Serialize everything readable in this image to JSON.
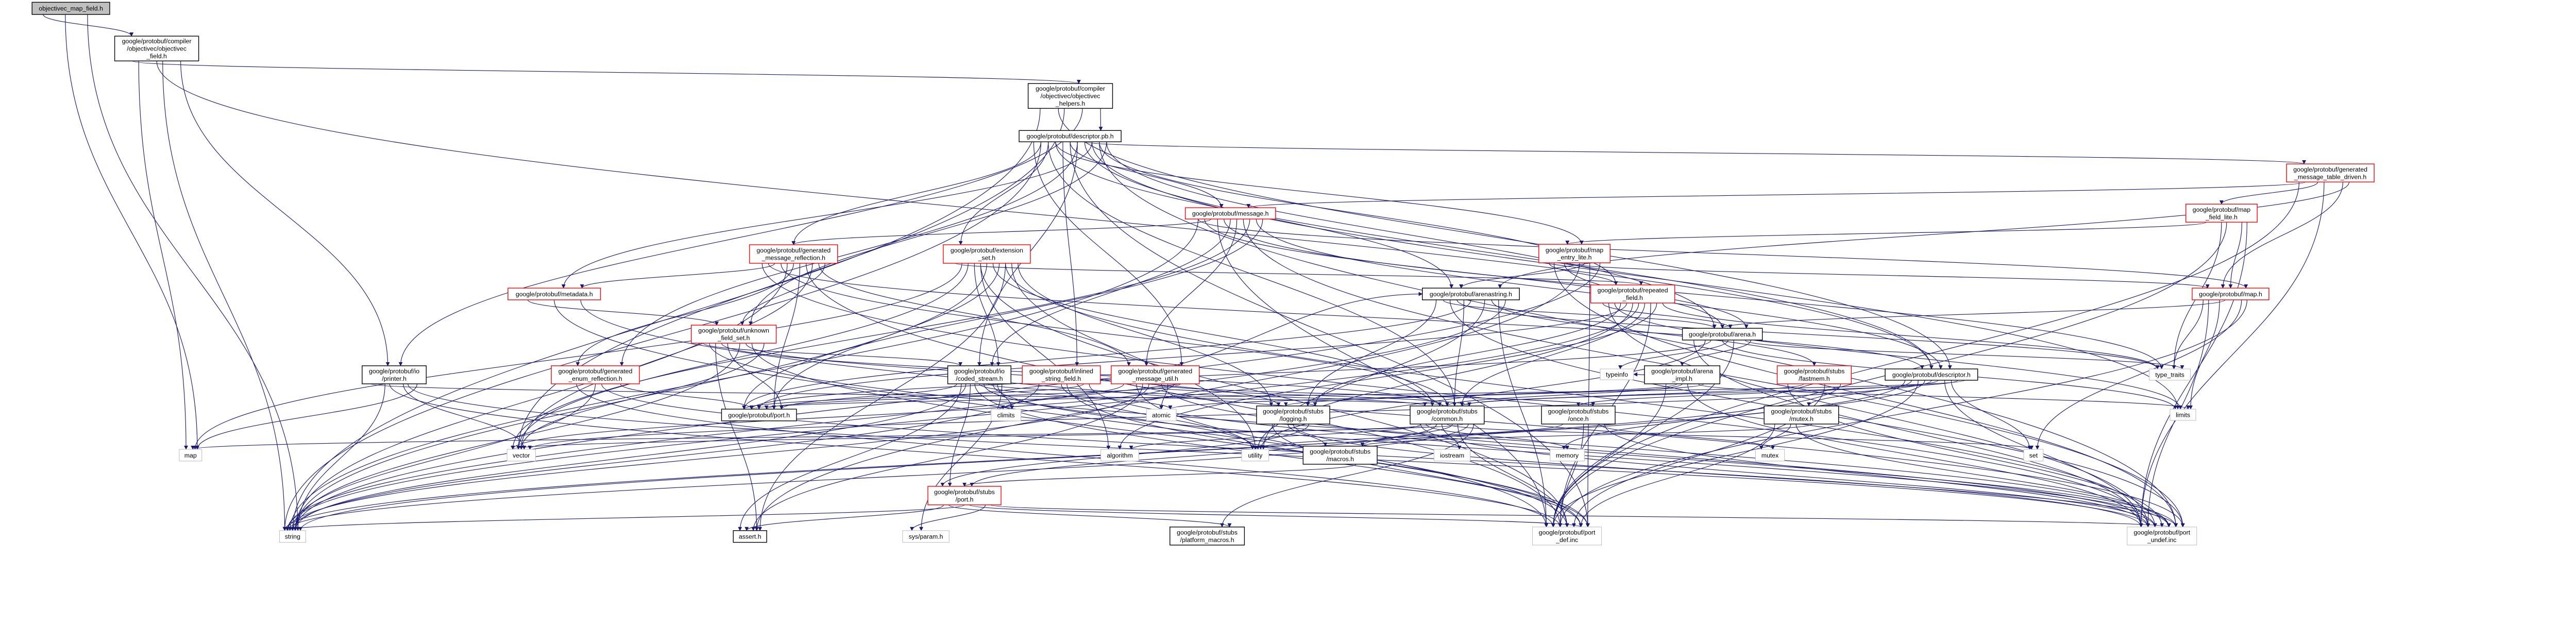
{
  "colors": {
    "edge": "#191970",
    "root_fill": "#bfbfbf",
    "root_border": "#000000",
    "truncated_border": "#ff0000",
    "file_border": "#000000",
    "system_border": "#bfbfbf",
    "node_fill": "#ffffff"
  },
  "nodes": [
    {
      "id": "root",
      "label": [
        "objectivec_map_field.h"
      ],
      "kind": "root"
    },
    {
      "id": "field",
      "label": [
        "google/protobuf/compiler",
        "/objectivec/objectivec",
        "_field.h"
      ],
      "kind": "file"
    },
    {
      "id": "helpers",
      "label": [
        "google/protobuf/compiler",
        "/objectivec/objectivec",
        "_helpers.h"
      ],
      "kind": "file"
    },
    {
      "id": "descriptor_pb",
      "label": [
        "google/protobuf/descriptor.pb.h"
      ],
      "kind": "file"
    },
    {
      "id": "message",
      "label": [
        "google/protobuf/message.h"
      ],
      "kind": "truncated"
    },
    {
      "id": "gmr",
      "label": [
        "google/protobuf/generated",
        "_message_reflection.h"
      ],
      "kind": "truncated"
    },
    {
      "id": "extension_set",
      "label": [
        "google/protobuf/extension",
        "_set.h"
      ],
      "kind": "truncated"
    },
    {
      "id": "metadata",
      "label": [
        "google/protobuf/metadata.h"
      ],
      "kind": "truncated"
    },
    {
      "id": "unknown",
      "label": [
        "google/protobuf/unknown",
        "_field_set.h"
      ],
      "kind": "truncated"
    },
    {
      "id": "printer",
      "label": [
        "google/protobuf/io",
        "/printer.h"
      ],
      "kind": "file"
    },
    {
      "id": "ger",
      "label": [
        "google/protobuf/generated",
        "_enum_reflection.h"
      ],
      "kind": "truncated"
    },
    {
      "id": "coded_stream",
      "label": [
        "google/protobuf/io",
        "/coded_stream.h"
      ],
      "kind": "file"
    },
    {
      "id": "inlined",
      "label": [
        "google/protobuf/inlined",
        "_string_field.h"
      ],
      "kind": "truncated"
    },
    {
      "id": "gmu",
      "label": [
        "google/protobuf/generated",
        "_message_util.h"
      ],
      "kind": "truncated"
    },
    {
      "id": "port",
      "label": [
        "google/protobuf/port.h"
      ],
      "kind": "file"
    },
    {
      "id": "climits",
      "label": [
        "climits"
      ],
      "kind": "system"
    },
    {
      "id": "atomic",
      "label": [
        "atomic"
      ],
      "kind": "system"
    },
    {
      "id": "logging",
      "label": [
        "google/protobuf/stubs",
        "/logging.h"
      ],
      "kind": "file"
    },
    {
      "id": "common",
      "label": [
        "google/protobuf/stubs",
        "/common.h"
      ],
      "kind": "file"
    },
    {
      "id": "once",
      "label": [
        "google/protobuf/stubs",
        "/once.h"
      ],
      "kind": "file"
    },
    {
      "id": "mutex_h",
      "label": [
        "google/protobuf/stubs",
        "/mutex.h"
      ],
      "kind": "file"
    },
    {
      "id": "map_std",
      "label": [
        "map"
      ],
      "kind": "system"
    },
    {
      "id": "vector",
      "label": [
        "vector"
      ],
      "kind": "system"
    },
    {
      "id": "algorithm",
      "label": [
        "algorithm"
      ],
      "kind": "system"
    },
    {
      "id": "utility",
      "label": [
        "utility"
      ],
      "kind": "system"
    },
    {
      "id": "macros",
      "label": [
        "google/protobuf/stubs",
        "/macros.h"
      ],
      "kind": "file"
    },
    {
      "id": "iostream",
      "label": [
        "iostream"
      ],
      "kind": "system"
    },
    {
      "id": "memory",
      "label": [
        "memory"
      ],
      "kind": "system"
    },
    {
      "id": "mutex",
      "label": [
        "mutex"
      ],
      "kind": "system"
    },
    {
      "id": "set",
      "label": [
        "set"
      ],
      "kind": "system"
    },
    {
      "id": "stubs_port",
      "label": [
        "google/protobuf/stubs",
        "/port.h"
      ],
      "kind": "truncated"
    },
    {
      "id": "string",
      "label": [
        "string"
      ],
      "kind": "system"
    },
    {
      "id": "assert",
      "label": [
        "assert.h"
      ],
      "kind": "file"
    },
    {
      "id": "sysparam",
      "label": [
        "sys/param.h"
      ],
      "kind": "system"
    },
    {
      "id": "platform_macros",
      "label": [
        "google/protobuf/stubs",
        "/platform_macros.h"
      ],
      "kind": "file"
    },
    {
      "id": "port_def",
      "label": [
        "google/protobuf/port",
        "_def.inc"
      ],
      "kind": "system"
    },
    {
      "id": "port_undef",
      "label": [
        "google/protobuf/port",
        "_undef.inc"
      ],
      "kind": "system"
    },
    {
      "id": "map_entry_lite",
      "label": [
        "google/protobuf/map",
        "_entry_lite.h"
      ],
      "kind": "truncated"
    },
    {
      "id": "arenastring",
      "label": [
        "google/protobuf/arenastring.h"
      ],
      "kind": "file"
    },
    {
      "id": "repeated",
      "label": [
        "google/protobuf/repeated",
        "_field.h"
      ],
      "kind": "truncated"
    },
    {
      "id": "arena",
      "label": [
        "google/protobuf/arena.h"
      ],
      "kind": "file"
    },
    {
      "id": "typeinfo",
      "label": [
        "typeinfo"
      ],
      "kind": "system"
    },
    {
      "id": "arena_impl",
      "label": [
        "google/protobuf/arena",
        "_impl.h"
      ],
      "kind": "file"
    },
    {
      "id": "fastmem",
      "label": [
        "google/protobuf/stubs",
        "/fastmem.h"
      ],
      "kind": "truncated"
    },
    {
      "id": "descriptor_h",
      "label": [
        "google/protobuf/descriptor.h"
      ],
      "kind": "file"
    },
    {
      "id": "type_traits",
      "label": [
        "type_traits"
      ],
      "kind": "system"
    },
    {
      "id": "limits",
      "label": [
        "limits"
      ],
      "kind": "system"
    },
    {
      "id": "gmtd",
      "label": [
        "google/protobuf/generated",
        "_message_table_driven.h"
      ],
      "kind": "truncated"
    },
    {
      "id": "map_field_lite",
      "label": [
        "google/protobuf/map",
        "_field_lite.h"
      ],
      "kind": "truncated"
    },
    {
      "id": "map_h",
      "label": [
        "google/protobuf/map.h"
      ],
      "kind": "truncated"
    }
  ],
  "edges": [
    [
      "root",
      "field"
    ],
    [
      "root",
      "map_std"
    ],
    [
      "root",
      "string"
    ],
    [
      "field",
      "helpers"
    ],
    [
      "field",
      "descriptor_h"
    ],
    [
      "field",
      "printer"
    ],
    [
      "field",
      "map_std"
    ],
    [
      "field",
      "string"
    ],
    [
      "helpers",
      "descriptor_pb"
    ],
    [
      "helpers",
      "descriptor_h"
    ],
    [
      "helpers",
      "printer"
    ],
    [
      "helpers",
      "string"
    ],
    [
      "helpers",
      "vector"
    ],
    [
      "descriptor_pb",
      "limits"
    ],
    [
      "descriptor_pb",
      "string"
    ],
    [
      "descriptor_pb",
      "port_def"
    ],
    [
      "descriptor_pb",
      "port_undef"
    ],
    [
      "descriptor_pb",
      "common"
    ],
    [
      "descriptor_pb",
      "coded_stream"
    ],
    [
      "descriptor_pb",
      "arena"
    ],
    [
      "descriptor_pb",
      "arenastring"
    ],
    [
      "descriptor_pb",
      "gmtd"
    ],
    [
      "descriptor_pb",
      "gmu"
    ],
    [
      "descriptor_pb",
      "inlined"
    ],
    [
      "descriptor_pb",
      "metadata"
    ],
    [
      "descriptor_pb",
      "gmr"
    ],
    [
      "descriptor_pb",
      "message"
    ],
    [
      "descriptor_pb",
      "repeated"
    ],
    [
      "descriptor_pb",
      "extension_set"
    ],
    [
      "descriptor_pb",
      "ger"
    ],
    [
      "descriptor_pb",
      "unknown"
    ],
    [
      "descriptor_pb",
      "map_entry_lite"
    ],
    [
      "descriptor_pb",
      "descriptor_h"
    ],
    [
      "message",
      "string"
    ],
    [
      "message",
      "type_traits"
    ],
    [
      "message",
      "vector"
    ],
    [
      "message",
      "arena"
    ],
    [
      "message",
      "coded_stream"
    ],
    [
      "message",
      "descriptor_h"
    ],
    [
      "message",
      "gmr"
    ],
    [
      "message",
      "gmu"
    ],
    [
      "message",
      "port"
    ],
    [
      "message",
      "port_def"
    ],
    [
      "message",
      "port_undef"
    ],
    [
      "message",
      "map_h"
    ],
    [
      "gmr",
      "string"
    ],
    [
      "gmr",
      "vector"
    ],
    [
      "gmr",
      "descriptor_h"
    ],
    [
      "gmr",
      "ger"
    ],
    [
      "gmr",
      "gmu"
    ],
    [
      "gmr",
      "metadata"
    ],
    [
      "gmr",
      "port"
    ],
    [
      "gmr",
      "unknown"
    ],
    [
      "gmr",
      "common"
    ],
    [
      "gmr",
      "port_def"
    ],
    [
      "gmr",
      "port_undef"
    ],
    [
      "extension_set",
      "algorithm"
    ],
    [
      "extension_set",
      "assert"
    ],
    [
      "extension_set",
      "map_std"
    ],
    [
      "extension_set",
      "string"
    ],
    [
      "extension_set",
      "utility"
    ],
    [
      "extension_set",
      "vector"
    ],
    [
      "extension_set",
      "common"
    ],
    [
      "extension_set",
      "logging"
    ],
    [
      "extension_set",
      "coded_stream"
    ],
    [
      "extension_set",
      "port"
    ],
    [
      "extension_set",
      "repeated"
    ],
    [
      "extension_set",
      "port_def"
    ],
    [
      "extension_set",
      "port_undef"
    ],
    [
      "metadata",
      "unknown"
    ],
    [
      "metadata",
      "port_def"
    ],
    [
      "metadata",
      "port_undef"
    ],
    [
      "unknown",
      "assert"
    ],
    [
      "unknown",
      "string"
    ],
    [
      "unknown",
      "vector"
    ],
    [
      "unknown",
      "common"
    ],
    [
      "unknown",
      "logging"
    ],
    [
      "unknown",
      "coded_stream"
    ],
    [
      "unknown",
      "port"
    ],
    [
      "unknown",
      "port_def"
    ],
    [
      "unknown",
      "port_undef"
    ],
    [
      "ger",
      "string"
    ],
    [
      "ger",
      "port"
    ],
    [
      "ger",
      "port_def"
    ],
    [
      "ger",
      "port_undef"
    ],
    [
      "printer",
      "map_std"
    ],
    [
      "printer",
      "string"
    ],
    [
      "printer",
      "vector"
    ],
    [
      "printer",
      "common"
    ],
    [
      "printer",
      "port_def"
    ],
    [
      "printer",
      "port_undef"
    ],
    [
      "coded_stream",
      "assert"
    ],
    [
      "coded_stream",
      "atomic"
    ],
    [
      "coded_stream",
      "climits"
    ],
    [
      "coded_stream",
      "string"
    ],
    [
      "coded_stream",
      "utility"
    ],
    [
      "coded_stream",
      "sysparam"
    ],
    [
      "coded_stream",
      "stubs_port"
    ],
    [
      "coded_stream",
      "common"
    ],
    [
      "coded_stream",
      "port"
    ],
    [
      "coded_stream",
      "port_def"
    ],
    [
      "coded_stream",
      "port_undef"
    ],
    [
      "inlined",
      "string"
    ],
    [
      "inlined",
      "utility"
    ],
    [
      "inlined",
      "port"
    ],
    [
      "inlined",
      "arenastring"
    ],
    [
      "inlined",
      "port_def"
    ],
    [
      "inlined",
      "port_undef"
    ],
    [
      "gmu",
      "assert"
    ],
    [
      "gmu",
      "atomic"
    ],
    [
      "gmu",
      "climits"
    ],
    [
      "gmu",
      "string"
    ],
    [
      "gmu",
      "vector"
    ],
    [
      "gmu",
      "common"
    ],
    [
      "gmu",
      "once"
    ],
    [
      "gmu",
      "port"
    ],
    [
      "gmu",
      "port_def"
    ],
    [
      "gmu",
      "port_undef"
    ],
    [
      "arenastring",
      "string"
    ],
    [
      "arenastring",
      "type_traits"
    ],
    [
      "arenastring",
      "utility"
    ],
    [
      "arenastring",
      "logging"
    ],
    [
      "arenastring",
      "common"
    ],
    [
      "arenastring",
      "fastmem"
    ],
    [
      "arenastring",
      "arena"
    ],
    [
      "arenastring",
      "port"
    ],
    [
      "arenastring",
      "port_def"
    ],
    [
      "arenastring",
      "port_undef"
    ],
    [
      "map_entry_lite",
      "assert"
    ],
    [
      "map_entry_lite",
      "string"
    ],
    [
      "map_entry_lite",
      "arena"
    ],
    [
      "map_entry_lite",
      "arenastring"
    ],
    [
      "map_entry_lite",
      "repeated"
    ],
    [
      "map_entry_lite",
      "map_h"
    ],
    [
      "map_entry_lite",
      "port_def"
    ],
    [
      "map_entry_lite",
      "port_undef"
    ],
    [
      "repeated",
      "utility"
    ],
    [
      "repeated",
      "algorithm"
    ],
    [
      "repeated",
      "limits"
    ],
    [
      "repeated",
      "string"
    ],
    [
      "repeated",
      "type_traits"
    ],
    [
      "repeated",
      "logging"
    ],
    [
      "repeated",
      "common"
    ],
    [
      "repeated",
      "arena"
    ],
    [
      "repeated",
      "port"
    ],
    [
      "repeated",
      "port_def"
    ],
    [
      "repeated",
      "port_undef"
    ],
    [
      "arena",
      "limits"
    ],
    [
      "arena",
      "type_traits"
    ],
    [
      "arena",
      "utility"
    ],
    [
      "arena",
      "typeinfo"
    ],
    [
      "arena",
      "arena_impl"
    ],
    [
      "arena",
      "port"
    ],
    [
      "arena",
      "port_def"
    ],
    [
      "arena",
      "port_undef"
    ],
    [
      "arena_impl",
      "atomic"
    ],
    [
      "arena_impl",
      "limits"
    ],
    [
      "arena_impl",
      "typeinfo"
    ],
    [
      "arena_impl",
      "common"
    ],
    [
      "arena_impl",
      "logging"
    ],
    [
      "arena_impl",
      "port_def"
    ],
    [
      "arena_impl",
      "port_undef"
    ],
    [
      "fastmem",
      "string"
    ],
    [
      "fastmem",
      "common"
    ],
    [
      "fastmem",
      "port_def"
    ],
    [
      "fastmem",
      "port_undef"
    ],
    [
      "descriptor_h",
      "memory"
    ],
    [
      "descriptor_h",
      "set"
    ],
    [
      "descriptor_h",
      "string"
    ],
    [
      "descriptor_h",
      "vector"
    ],
    [
      "descriptor_h",
      "common"
    ],
    [
      "descriptor_h",
      "mutex_h"
    ],
    [
      "descriptor_h",
      "once"
    ],
    [
      "descriptor_h",
      "port"
    ],
    [
      "descriptor_h",
      "port_def"
    ],
    [
      "descriptor_h",
      "port_undef"
    ],
    [
      "common",
      "algorithm"
    ],
    [
      "common",
      "iostream"
    ],
    [
      "common",
      "map_std"
    ],
    [
      "common",
      "memory"
    ],
    [
      "common",
      "set"
    ],
    [
      "common",
      "string"
    ],
    [
      "common",
      "vector"
    ],
    [
      "common",
      "macros"
    ],
    [
      "common",
      "platform_macros"
    ],
    [
      "common",
      "stubs_port"
    ],
    [
      "common",
      "port_def"
    ],
    [
      "common",
      "port_undef"
    ],
    [
      "logging",
      "macros"
    ],
    [
      "logging",
      "stubs_port"
    ],
    [
      "logging",
      "port_def"
    ],
    [
      "logging",
      "port_undef"
    ],
    [
      "once",
      "mutex"
    ],
    [
      "once",
      "utility"
    ],
    [
      "once",
      "port_def"
    ],
    [
      "once",
      "port_undef"
    ],
    [
      "mutex_h",
      "mutex"
    ],
    [
      "mutex_h",
      "macros"
    ],
    [
      "mutex_h",
      "port_def"
    ],
    [
      "mutex_h",
      "port_undef"
    ],
    [
      "macros",
      "stubs_port"
    ],
    [
      "stubs_port",
      "assert"
    ],
    [
      "stubs_port",
      "string"
    ],
    [
      "stubs_port",
      "sysparam"
    ],
    [
      "stubs_port",
      "platform_macros"
    ],
    [
      "stubs_port",
      "port_def"
    ],
    [
      "stubs_port",
      "port_undef"
    ],
    [
      "gmtd",
      "map_field_lite"
    ],
    [
      "gmtd",
      "map_h"
    ],
    [
      "gmtd",
      "port_def"
    ],
    [
      "gmtd",
      "port_undef"
    ],
    [
      "gmtd",
      "arenastring"
    ],
    [
      "gmtd",
      "message"
    ],
    [
      "map_field_lite",
      "type_traits"
    ],
    [
      "map_field_lite",
      "map_h"
    ],
    [
      "map_field_lite",
      "map_entry_lite"
    ],
    [
      "map_field_lite",
      "port_def"
    ],
    [
      "map_field_lite",
      "port_undef"
    ],
    [
      "map_h",
      "limits"
    ],
    [
      "map_h",
      "set"
    ],
    [
      "map_h",
      "type_traits"
    ],
    [
      "map_h",
      "arena"
    ],
    [
      "map_h",
      "port_def"
    ],
    [
      "map_h",
      "port_undef"
    ]
  ]
}
